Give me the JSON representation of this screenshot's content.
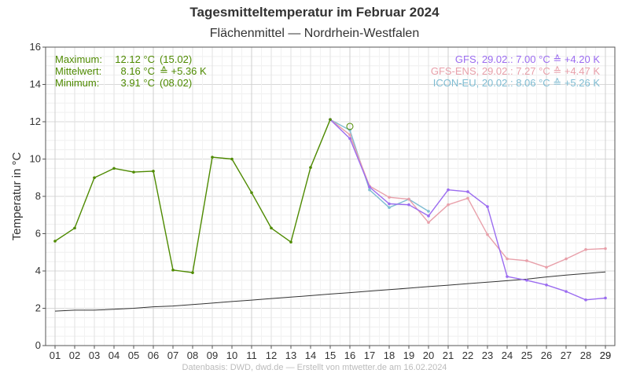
{
  "chart_data": {
    "type": "line",
    "title": "Tagesmitteltemperatur im Februar 2024",
    "subtitle": "Flächenmittel — Nordrhein-Westfalen",
    "ylabel": "Temperatur in °C",
    "xlabel": "",
    "ylim": [
      0,
      16
    ],
    "yticks": [
      "0",
      "2",
      "4",
      "6",
      "8",
      "10",
      "12",
      "14",
      "16"
    ],
    "xlim": [
      1,
      29
    ],
    "xticks": [
      "01",
      "02",
      "03",
      "04",
      "05",
      "06",
      "07",
      "08",
      "09",
      "10",
      "11",
      "12",
      "13",
      "14",
      "15",
      "16",
      "17",
      "18",
      "19",
      "20",
      "21",
      "22",
      "23",
      "24",
      "25",
      "26",
      "27",
      "28",
      "29",
      "29"
    ],
    "grid": true,
    "series": [
      {
        "role": "observed",
        "color": "#4e8a00",
        "x": [
          1,
          2,
          3,
          4,
          5,
          6,
          7,
          8,
          9,
          10,
          11,
          12,
          13,
          14,
          15
        ],
        "y": [
          5.6,
          6.3,
          9.0,
          9.5,
          9.3,
          9.35,
          4.05,
          3.91,
          10.1,
          10.0,
          8.2,
          6.3,
          5.55,
          9.55,
          12.12
        ]
      },
      {
        "role": "climate",
        "color": "#333333",
        "x": [
          1,
          2,
          3,
          4,
          5,
          6,
          7,
          8,
          9,
          10,
          11,
          12,
          13,
          14,
          15,
          16,
          17,
          18,
          19,
          20,
          21,
          22,
          23,
          24,
          25,
          26,
          27,
          28,
          29
        ],
        "y": [
          1.85,
          1.9,
          1.9,
          1.95,
          2.0,
          2.08,
          2.12,
          2.2,
          2.28,
          2.36,
          2.44,
          2.52,
          2.6,
          2.68,
          2.76,
          2.84,
          2.92,
          3.0,
          3.08,
          3.16,
          3.24,
          3.32,
          3.4,
          3.48,
          3.56,
          3.68,
          3.78,
          3.86,
          3.95
        ]
      },
      {
        "role": "GFS",
        "color": "#9b6cf0",
        "x": [
          15,
          16,
          17,
          18,
          19,
          20,
          21,
          22,
          23,
          24,
          25,
          26,
          27,
          28,
          29
        ],
        "y": [
          12.12,
          11.1,
          8.5,
          7.6,
          7.55,
          6.95,
          8.35,
          8.25,
          7.45,
          3.7,
          3.5,
          3.25,
          2.9,
          2.45,
          2.55
        ]
      },
      {
        "role": "GFS-ENS",
        "color": "#e8a0aa",
        "x": [
          15,
          16,
          17,
          18,
          19,
          20,
          21,
          22,
          23,
          24,
          25,
          26,
          27,
          28,
          29
        ],
        "y": [
          12.12,
          11.3,
          8.55,
          7.95,
          7.85,
          6.6,
          7.55,
          7.9,
          5.95,
          4.65,
          4.55,
          4.2,
          4.65,
          5.15,
          5.2
        ]
      },
      {
        "role": "ICON-EU",
        "color": "#7fbcd2",
        "x": [
          15,
          16,
          17,
          18,
          19,
          20
        ],
        "y": [
          12.12,
          11.55,
          8.35,
          7.4,
          7.85,
          7.2
        ]
      }
    ],
    "marker_point": {
      "x": 16,
      "y": 11.75,
      "color": "#4e8a00"
    },
    "stats": [
      {
        "label": "Maximum:",
        "value": "12.12 °C",
        "extra": "(15.02)"
      },
      {
        "label": "Mittelwert:",
        "value": "8.16 °C",
        "extra": "≙ +5.36 K"
      },
      {
        "label": "Minimum:",
        "value": "3.91 °C",
        "extra": "(08.02)"
      }
    ],
    "forecasts": [
      {
        "text": "GFS, 29.02.:  7.00 °C  ≙ +4.20 K",
        "color": "#9b6cf0"
      },
      {
        "text": "GFS-ENS, 29.02.:  7.27 °C  ≙ +4.47 K",
        "color": "#e8a0aa"
      },
      {
        "text": "ICON-EU, 20.02.:  8.06 °C  ≙ +5.26 K",
        "color": "#7fbcd2"
      }
    ],
    "stats_color": "#4e8a00"
  },
  "footer": "Datenbasis: DWD, dwd.de — Erstellt von mtwetter.de am 16.02.2024"
}
